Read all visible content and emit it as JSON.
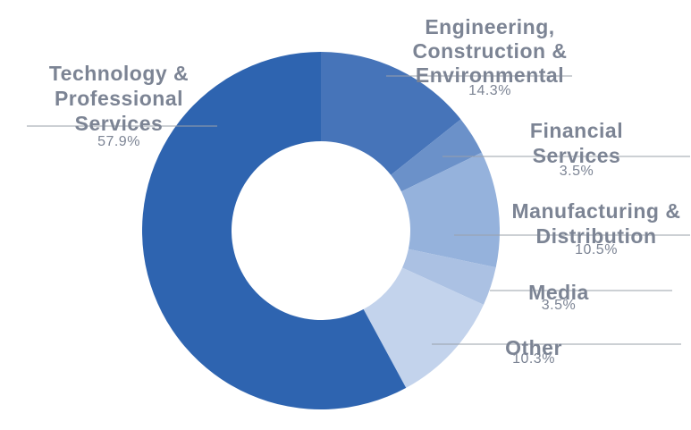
{
  "chart_data": {
    "type": "pie",
    "donut": true,
    "title": "",
    "slices": [
      {
        "label_lines": [
          "Engineering,",
          "Construction &",
          "Environmental"
        ],
        "value": 14.3,
        "value_label": "14.3%",
        "color": "#4674b9"
      },
      {
        "label_lines": [
          "Financial",
          "Services"
        ],
        "value": 3.5,
        "value_label": "3.5%",
        "color": "#6b91c9"
      },
      {
        "label_lines": [
          "Manufacturing &",
          "Distribution"
        ],
        "value": 10.5,
        "value_label": "10.5%",
        "color": "#95b2dc"
      },
      {
        "label_lines": [
          "Media"
        ],
        "value": 3.5,
        "value_label": "3.5%",
        "color": "#abc1e3"
      },
      {
        "label_lines": [
          "Other"
        ],
        "value": 10.3,
        "value_label": "10.3%",
        "color": "#c3d3ec"
      },
      {
        "label_lines": [
          "Technology &",
          "Professional",
          "Services"
        ],
        "value": 57.9,
        "value_label": "57.9%",
        "color": "#2e64b0"
      }
    ],
    "legend": "none"
  }
}
